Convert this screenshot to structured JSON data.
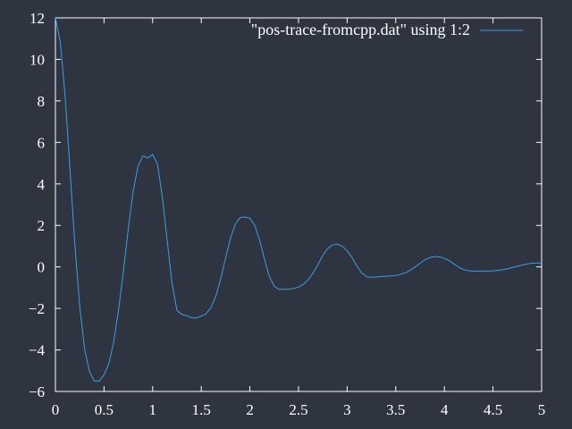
{
  "theme": {
    "background": "#2e3440",
    "axis_color": "#ffffff",
    "text_color": "#ffffff",
    "series_color": "#3a9ee8"
  },
  "chart_data": {
    "type": "line",
    "title": "",
    "xlabel": "",
    "ylabel": "",
    "xlim": [
      0,
      5
    ],
    "ylim": [
      -6,
      12
    ],
    "xticks": [
      0,
      0.5,
      1,
      1.5,
      2,
      2.5,
      3,
      3.5,
      4,
      4.5,
      5
    ],
    "xtick_labels": [
      "0",
      "0.5",
      "1",
      "1.5",
      "2",
      "2.5",
      "3",
      "3.5",
      "4",
      "4.5",
      "5"
    ],
    "yticks": [
      -6,
      -4,
      -2,
      0,
      2,
      4,
      6,
      8,
      10,
      12
    ],
    "ytick_labels": [
      "−6",
      "−4",
      "−2",
      "0",
      "2",
      "4",
      "6",
      "8",
      "10",
      "12"
    ],
    "grid": false,
    "legend_position": "top-right",
    "series": [
      {
        "name": "\"pos-trace-fromcpp.dat\" using 1:2",
        "color": "#3a9ee8",
        "x": [
          0,
          0.05,
          0.1,
          0.15,
          0.2,
          0.25,
          0.3,
          0.35,
          0.4,
          0.45,
          0.5,
          0.55,
          0.6,
          0.65,
          0.7,
          0.75,
          0.8,
          0.85,
          0.9,
          0.95,
          1.0,
          1.05,
          1.1,
          1.15,
          1.2,
          1.25,
          1.3,
          1.35,
          1.4,
          1.45,
          1.5,
          1.55,
          1.6,
          1.65,
          1.7,
          1.75,
          1.8,
          1.85,
          1.9,
          1.95,
          2.0,
          2.05,
          2.1,
          2.15,
          2.2,
          2.25,
          2.3,
          2.35,
          2.4,
          2.45,
          2.5,
          2.55,
          2.6,
          2.65,
          2.7,
          2.75,
          2.8,
          2.85,
          2.9,
          2.95,
          3.0,
          3.05,
          3.1,
          3.15,
          3.2,
          3.25,
          3.3,
          3.35,
          3.4,
          3.45,
          3.5,
          3.55,
          3.6,
          3.65,
          3.7,
          3.75,
          3.8,
          3.85,
          3.9,
          3.95,
          4.0,
          4.05,
          4.1,
          4.15,
          4.2,
          4.25,
          4.3,
          4.35,
          4.4,
          4.45,
          4.5,
          4.55,
          4.6,
          4.65,
          4.7,
          4.75,
          4.8,
          4.85,
          4.9,
          4.95,
          5.0
        ],
        "y": [
          12.0,
          10.85,
          8.23,
          4.67,
          1.08,
          -1.9,
          -3.95,
          -5.03,
          -5.5,
          -5.5,
          -5.2,
          -4.66,
          -3.6,
          -2.05,
          -0.18,
          1.86,
          3.65,
          4.86,
          5.35,
          5.25,
          5.42,
          4.95,
          3.35,
          1.25,
          -0.8,
          -2.1,
          -2.28,
          -2.35,
          -2.45,
          -2.46,
          -2.37,
          -2.25,
          -1.95,
          -1.4,
          -0.58,
          0.43,
          1.37,
          2.07,
          2.38,
          2.4,
          2.35,
          2.0,
          1.29,
          0.38,
          -0.47,
          -0.93,
          -1.08,
          -1.08,
          -1.07,
          -1.04,
          -0.97,
          -0.84,
          -0.61,
          -0.29,
          0.12,
          0.56,
          0.89,
          1.06,
          1.1,
          1.0,
          0.78,
          0.45,
          0.05,
          -0.29,
          -0.47,
          -0.5,
          -0.49,
          -0.46,
          -0.45,
          -0.43,
          -0.41,
          -0.36,
          -0.28,
          -0.16,
          0.0,
          0.18,
          0.34,
          0.45,
          0.5,
          0.48,
          0.42,
          0.3,
          0.14,
          -0.02,
          -0.13,
          -0.18,
          -0.21,
          -0.2,
          -0.2,
          -0.2,
          -0.19,
          -0.17,
          -0.14,
          -0.09,
          -0.03,
          0.03,
          0.09,
          0.14,
          0.18,
          0.19,
          0.18
        ]
      }
    ]
  }
}
